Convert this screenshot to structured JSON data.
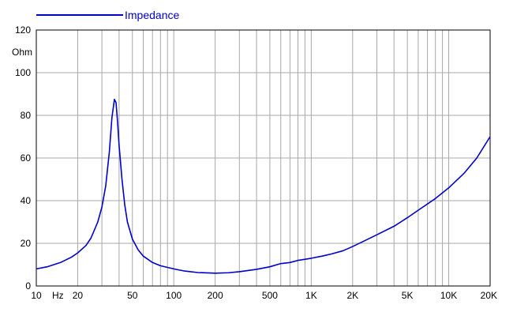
{
  "chart_data": {
    "type": "line",
    "x_scale": "log",
    "xlim": [
      10,
      20000
    ],
    "ylim": [
      0,
      120
    ],
    "ylabel": "Ohm",
    "xlabel": "Hz",
    "grid": true,
    "legend_position": "top-left",
    "y_ticks": [
      0,
      20,
      40,
      60,
      80,
      100,
      120
    ],
    "x_ticks": [
      {
        "value": 10,
        "label": "10"
      },
      {
        "value": 20,
        "label": "20"
      },
      {
        "value": 50,
        "label": "50"
      },
      {
        "value": 100,
        "label": "100"
      },
      {
        "value": 200,
        "label": "200"
      },
      {
        "value": 500,
        "label": "500"
      },
      {
        "value": 1000,
        "label": "1K"
      },
      {
        "value": 2000,
        "label": "2K"
      },
      {
        "value": 5000,
        "label": "5K"
      },
      {
        "value": 10000,
        "label": "10K"
      },
      {
        "value": 20000,
        "label": "20K"
      }
    ],
    "series": [
      {
        "name": "Impedance",
        "color": "#0000cc",
        "points": [
          [
            10,
            8
          ],
          [
            12,
            9
          ],
          [
            15,
            11
          ],
          [
            18,
            13.5
          ],
          [
            20,
            15.5
          ],
          [
            23,
            19
          ],
          [
            25,
            22.5
          ],
          [
            28,
            30
          ],
          [
            30,
            37
          ],
          [
            32,
            47
          ],
          [
            34,
            63
          ],
          [
            35.5,
            79
          ],
          [
            37,
            87.5
          ],
          [
            38,
            86
          ],
          [
            39,
            77
          ],
          [
            40,
            66
          ],
          [
            42,
            50
          ],
          [
            44,
            38
          ],
          [
            46,
            30
          ],
          [
            50,
            22
          ],
          [
            55,
            17
          ],
          [
            60,
            14
          ],
          [
            70,
            11
          ],
          [
            80,
            9.5
          ],
          [
            100,
            8
          ],
          [
            120,
            7
          ],
          [
            150,
            6.3
          ],
          [
            200,
            6
          ],
          [
            250,
            6.2
          ],
          [
            300,
            6.7
          ],
          [
            400,
            7.8
          ],
          [
            500,
            9
          ],
          [
            600,
            10.5
          ],
          [
            700,
            11
          ],
          [
            800,
            12
          ],
          [
            1000,
            13
          ],
          [
            1200,
            14
          ],
          [
            1400,
            15
          ],
          [
            1700,
            16.5
          ],
          [
            2000,
            18.5
          ],
          [
            2500,
            21.5
          ],
          [
            3000,
            24
          ],
          [
            4000,
            28
          ],
          [
            5000,
            32
          ],
          [
            6000,
            35.5
          ],
          [
            8000,
            41
          ],
          [
            10000,
            46
          ],
          [
            13000,
            53
          ],
          [
            16000,
            60
          ],
          [
            20000,
            70
          ]
        ]
      }
    ]
  }
}
